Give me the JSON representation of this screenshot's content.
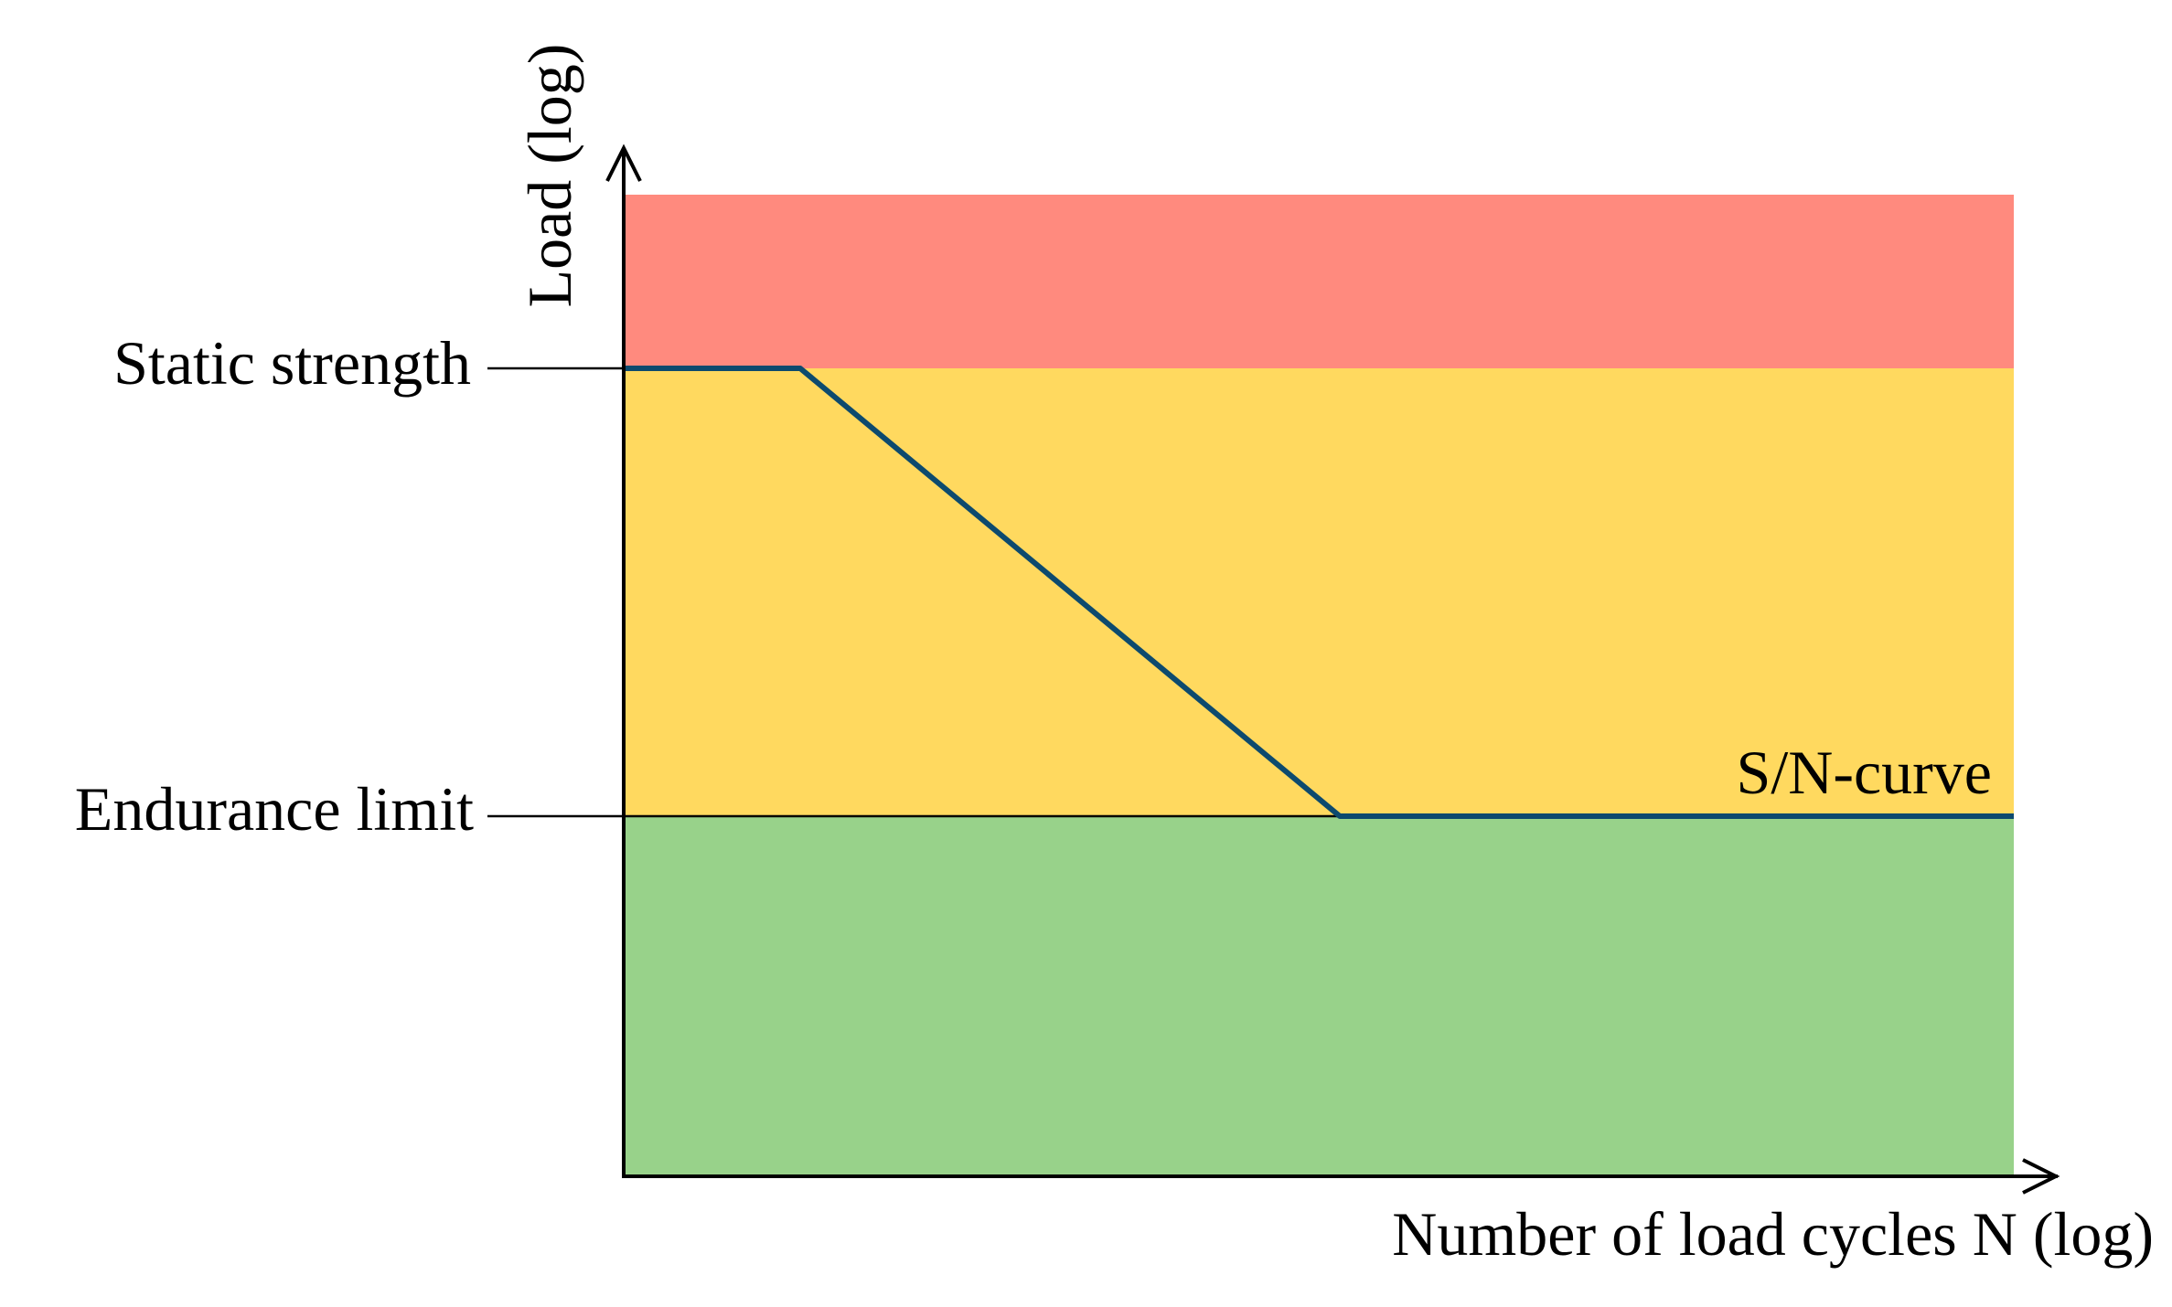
{
  "diagram": {
    "labels": {
      "static_strength": "Static strength",
      "endurance_limit": "Endurance limit",
      "sn_curve": "S/N-curve",
      "y_axis": "Load (log)",
      "x_axis": "Number of load cycles N (log)"
    },
    "regions": {
      "above_static": {
        "color": "#FF8A7E"
      },
      "finite_life": {
        "color": "#FFD95F"
      },
      "infinite_life": {
        "color": "#98D28A"
      }
    },
    "curve": {
      "color": "#0D4A6E"
    },
    "axis_color": "#000000"
  }
}
